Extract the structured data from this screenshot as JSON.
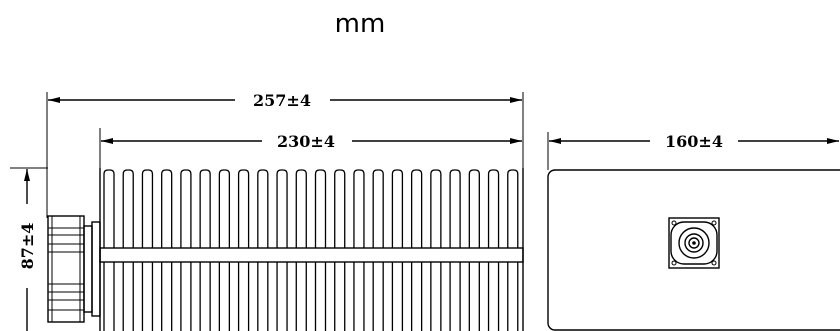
{
  "diagram": {
    "unit": "mm",
    "dimensions": {
      "overall_length": "257±4",
      "body_length": "230±4",
      "depth": "160±4",
      "height": "87±4"
    }
  }
}
